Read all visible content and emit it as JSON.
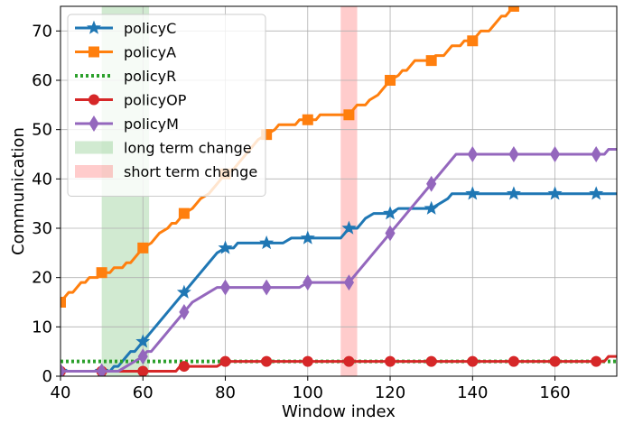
{
  "chart_data": {
    "type": "line",
    "title": "",
    "xlabel": "Window index",
    "ylabel": "Communication",
    "xlim": [
      40,
      175
    ],
    "ylim": [
      0,
      75
    ],
    "xticks": [
      40,
      60,
      80,
      100,
      120,
      140,
      160
    ],
    "yticks": [
      0,
      10,
      20,
      30,
      40,
      50,
      60,
      70
    ],
    "grid": true,
    "legend_position": "top-left",
    "bands": [
      {
        "name": "long term change",
        "range": [
          50,
          61.5
        ],
        "color": "#2ca02c"
      },
      {
        "name": "short term change",
        "range": [
          108,
          112
        ],
        "color": "#ff3333"
      }
    ],
    "series": [
      {
        "name": "policyC",
        "color": "#1f77b4",
        "marker": "star",
        "markers_every": 10,
        "points": [
          [
            40,
            1
          ],
          [
            52,
            1
          ],
          [
            53,
            2
          ],
          [
            54,
            2
          ],
          [
            55,
            3
          ],
          [
            56,
            4
          ],
          [
            57,
            5
          ],
          [
            58,
            5
          ],
          [
            59,
            6
          ],
          [
            60,
            7
          ],
          [
            62,
            9
          ],
          [
            64,
            11
          ],
          [
            66,
            13
          ],
          [
            68,
            15
          ],
          [
            70,
            17
          ],
          [
            72,
            19
          ],
          [
            74,
            21
          ],
          [
            76,
            23
          ],
          [
            78,
            25
          ],
          [
            80,
            26
          ],
          [
            82,
            26
          ],
          [
            83,
            27
          ],
          [
            90,
            27
          ],
          [
            94,
            27
          ],
          [
            96,
            28
          ],
          [
            100,
            28
          ],
          [
            108,
            28
          ],
          [
            110,
            30
          ],
          [
            112,
            30
          ],
          [
            113,
            31
          ],
          [
            114,
            32
          ],
          [
            116,
            33
          ],
          [
            120,
            33
          ],
          [
            122,
            34
          ],
          [
            130,
            34
          ],
          [
            132,
            35
          ],
          [
            134,
            36
          ],
          [
            135,
            37
          ],
          [
            175,
            37
          ]
        ]
      },
      {
        "name": "policyA",
        "color": "#ff7f0e",
        "marker": "square",
        "markers_every": 10,
        "points": [
          [
            40,
            15
          ],
          [
            41,
            16
          ],
          [
            42,
            17
          ],
          [
            43,
            17
          ],
          [
            44,
            18
          ],
          [
            45,
            19
          ],
          [
            46,
            19
          ],
          [
            47,
            20
          ],
          [
            48,
            20
          ],
          [
            49,
            20
          ],
          [
            50,
            21
          ],
          [
            52,
            21
          ],
          [
            53,
            22
          ],
          [
            55,
            22
          ],
          [
            56,
            23
          ],
          [
            57,
            23
          ],
          [
            58,
            24
          ],
          [
            59,
            25
          ],
          [
            60,
            26
          ],
          [
            62,
            27
          ],
          [
            63,
            28
          ],
          [
            64,
            29
          ],
          [
            66,
            30
          ],
          [
            67,
            31
          ],
          [
            68,
            31
          ],
          [
            69,
            32
          ],
          [
            70,
            33
          ],
          [
            72,
            34
          ],
          [
            73,
            35
          ],
          [
            74,
            36
          ],
          [
            76,
            37
          ],
          [
            77,
            38
          ],
          [
            78,
            39
          ],
          [
            79,
            40
          ],
          [
            80,
            41
          ],
          [
            82,
            42
          ],
          [
            83,
            43
          ],
          [
            84,
            44
          ],
          [
            85,
            45
          ],
          [
            86,
            46
          ],
          [
            87,
            47
          ],
          [
            88,
            48
          ],
          [
            90,
            49
          ],
          [
            92,
            50
          ],
          [
            93,
            51
          ],
          [
            97,
            51
          ],
          [
            98,
            52
          ],
          [
            102,
            52
          ],
          [
            103,
            53
          ],
          [
            110,
            53
          ],
          [
            112,
            55
          ],
          [
            114,
            55
          ],
          [
            115,
            56
          ],
          [
            117,
            57
          ],
          [
            118,
            58
          ],
          [
            120,
            60
          ],
          [
            122,
            61
          ],
          [
            123,
            62
          ],
          [
            124,
            62
          ],
          [
            125,
            63
          ],
          [
            126,
            64
          ],
          [
            128,
            64
          ],
          [
            130,
            64
          ],
          [
            131,
            65
          ],
          [
            133,
            65
          ],
          [
            134,
            66
          ],
          [
            135,
            67
          ],
          [
            137,
            67
          ],
          [
            138,
            68
          ],
          [
            140,
            68
          ],
          [
            141,
            69
          ],
          [
            142,
            70
          ],
          [
            144,
            70
          ],
          [
            145,
            71
          ],
          [
            146,
            72
          ],
          [
            147,
            73
          ],
          [
            148,
            73
          ],
          [
            149,
            74
          ],
          [
            150,
            75
          ],
          [
            151,
            76
          ]
        ]
      },
      {
        "name": "policyR",
        "color": "#2ca02c",
        "marker": "none",
        "dashed": true,
        "points": [
          [
            40,
            3
          ],
          [
            175,
            3
          ]
        ]
      },
      {
        "name": "policyOP",
        "color": "#d62728",
        "marker": "circle",
        "markers_every": 10,
        "points": [
          [
            40,
            1
          ],
          [
            54,
            1
          ],
          [
            56,
            1
          ],
          [
            68,
            1
          ],
          [
            69,
            2
          ],
          [
            78,
            2
          ],
          [
            80,
            3
          ],
          [
            172,
            3
          ],
          [
            173,
            4
          ],
          [
            175,
            4
          ]
        ]
      },
      {
        "name": "policyM",
        "color": "#9467bd",
        "marker": "diamond",
        "markers_every": 10,
        "points": [
          [
            40,
            1
          ],
          [
            54,
            1
          ],
          [
            56,
            2
          ],
          [
            58,
            3
          ],
          [
            60,
            4
          ],
          [
            61,
            5
          ],
          [
            62,
            5
          ],
          [
            64,
            7
          ],
          [
            66,
            9
          ],
          [
            68,
            11
          ],
          [
            70,
            13
          ],
          [
            72,
            15
          ],
          [
            74,
            16
          ],
          [
            76,
            17
          ],
          [
            78,
            18
          ],
          [
            90,
            18
          ],
          [
            98,
            18
          ],
          [
            100,
            19
          ],
          [
            110,
            19
          ],
          [
            112,
            21
          ],
          [
            114,
            23
          ],
          [
            116,
            25
          ],
          [
            118,
            27
          ],
          [
            120,
            29
          ],
          [
            122,
            31
          ],
          [
            124,
            33
          ],
          [
            126,
            35
          ],
          [
            128,
            37
          ],
          [
            130,
            39
          ],
          [
            132,
            41
          ],
          [
            134,
            43
          ],
          [
            136,
            45
          ],
          [
            170,
            45
          ],
          [
            172,
            45
          ],
          [
            173,
            46
          ],
          [
            175,
            46
          ]
        ]
      }
    ]
  }
}
